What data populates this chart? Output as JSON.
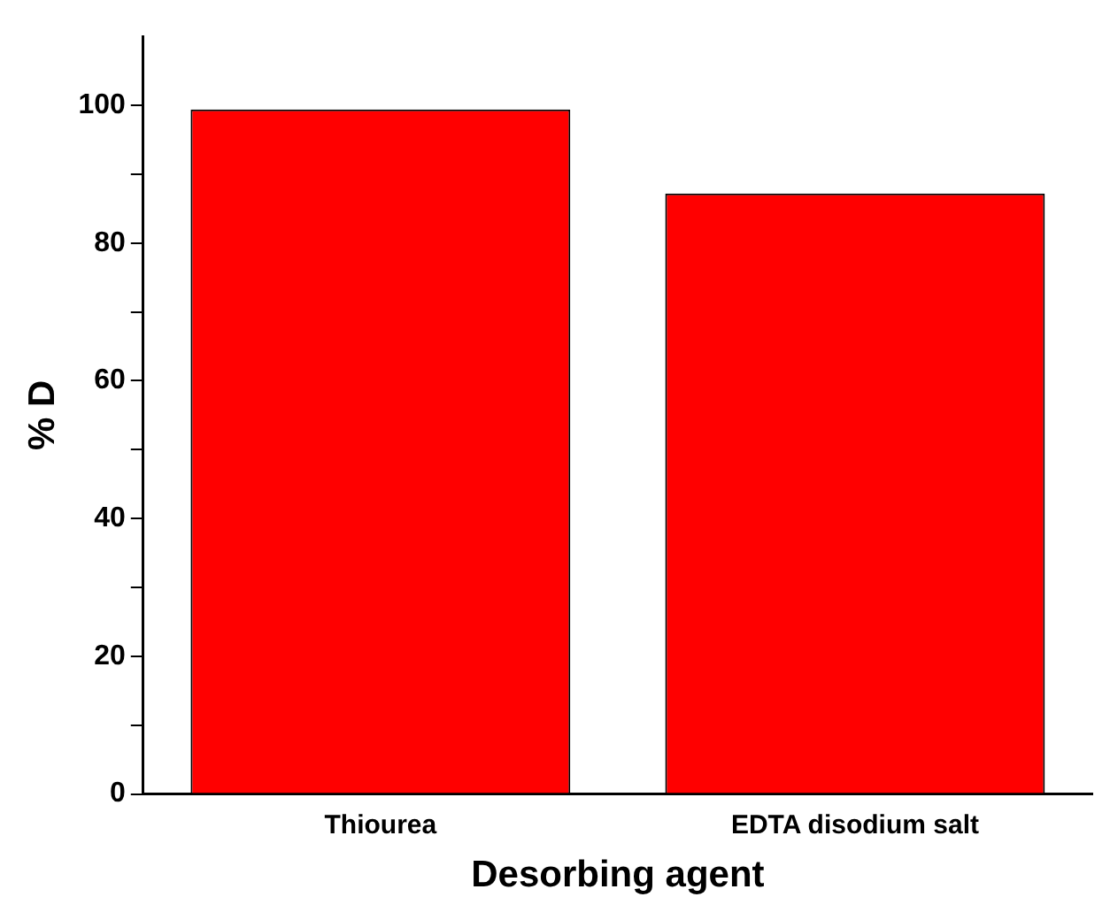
{
  "chart_data": {
    "type": "bar",
    "xlabel": "Desorbing agent",
    "ylabel": "% D",
    "categories": [
      "Thiourea",
      "EDTA disodium salt"
    ],
    "values": [
      99.4,
      87.2
    ],
    "color": "#ff0000",
    "ylim": [
      0,
      110
    ],
    "yticks": [
      0,
      {
        "value": 10,
        "label": null
      },
      20,
      {
        "value": 30,
        "label": null
      },
      40,
      {
        "value": 50,
        "label": null
      },
      60,
      {
        "value": 70,
        "label": null
      },
      80,
      {
        "value": 90,
        "label": null
      },
      100
    ],
    "grid": false,
    "legend": false
  }
}
